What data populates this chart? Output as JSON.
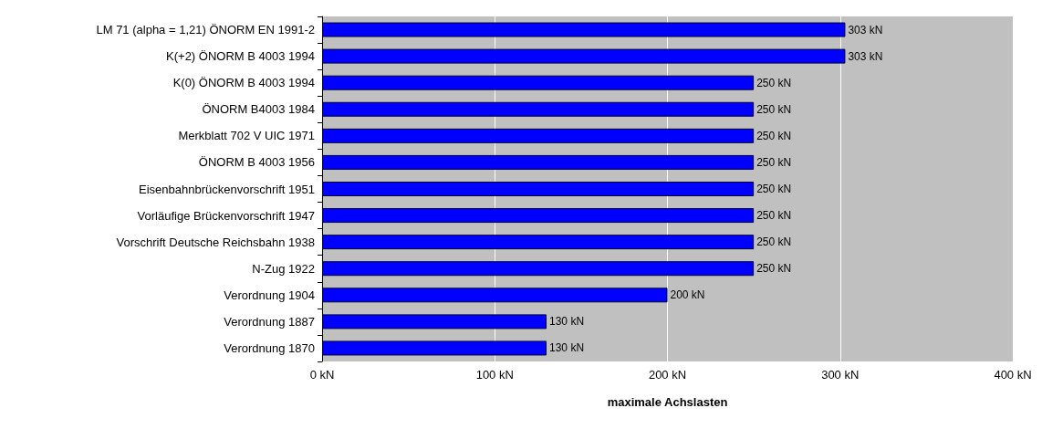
{
  "chart_data": {
    "type": "bar",
    "orientation": "horizontal",
    "xlabel": "maximale Achslasten",
    "categories": [
      "LM 71 (alpha = 1,21) ÖNORM EN 1991-2",
      "K(+2) ÖNORM B 4003 1994",
      "K(0) ÖNORM B 4003 1994",
      "ÖNORM B4003 1984",
      "Merkblatt 702 V UIC 1971",
      "ÖNORM B 4003 1956",
      "Eisenbahnbrückenvorschrift 1951",
      "Vorläufige Brückenvorschrift 1947",
      "Vorschrift Deutsche Reichsbahn 1938",
      "N-Zug 1922",
      "Verordnung 1904",
      "Verordnung 1887",
      "Verordnung 1870"
    ],
    "values": [
      303,
      303,
      250,
      250,
      250,
      250,
      250,
      250,
      250,
      250,
      200,
      130,
      130
    ],
    "value_labels": [
      "303 kN",
      "303 kN",
      "250 kN",
      "250 kN",
      "250 kN",
      "250 kN",
      "250 kN",
      "250 kN",
      "250 kN",
      "250 kN",
      "200 kN",
      "130 kN",
      "130 kN"
    ],
    "color": "#0000ff",
    "xlim": [
      0,
      400
    ],
    "xticks": [
      {
        "value": 0,
        "label": "0 kN"
      },
      {
        "value": 100,
        "label": "100 kN"
      },
      {
        "value": 200,
        "label": "200 kN"
      },
      {
        "value": 300,
        "label": "300 kN"
      },
      {
        "value": 400,
        "label": "400 kN"
      }
    ],
    "grid": "x"
  }
}
